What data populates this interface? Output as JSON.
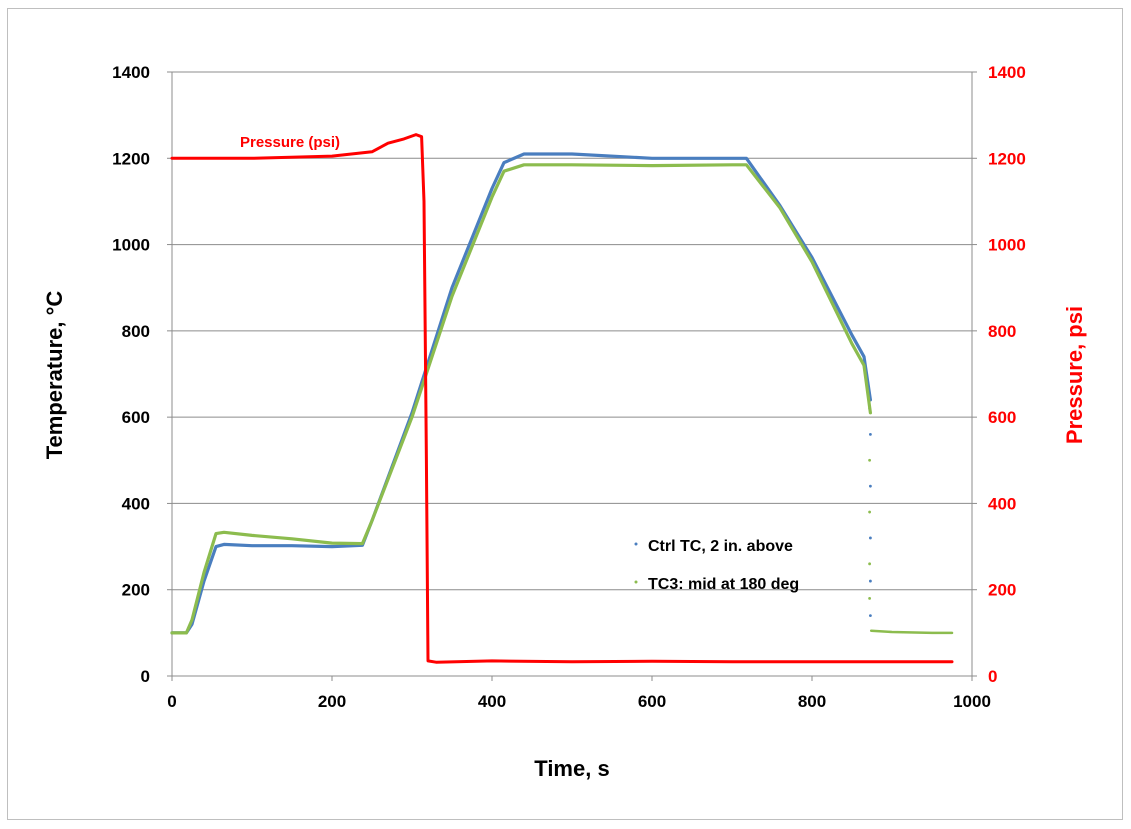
{
  "chart_data": {
    "type": "line",
    "xlabel": "Time, s",
    "ylabel": "Temperature, °C",
    "y2label": "Pressure, psi",
    "xlim": [
      0,
      1000
    ],
    "ylim": [
      0,
      1400
    ],
    "y2lim": [
      0,
      1400
    ],
    "xticks": [
      "0",
      "200",
      "400",
      "600",
      "800",
      "1000"
    ],
    "yticks": [
      "0",
      "200",
      "400",
      "600",
      "800",
      "1000",
      "1200",
      "1400"
    ],
    "y2ticks": [
      "0",
      "200",
      "400",
      "600",
      "800",
      "1000",
      "1200",
      "1400"
    ],
    "grid": "horizontal",
    "legend_position": "lower-right-inside",
    "annotation": "Pressure (psi)",
    "colors": {
      "ctrl": "#4a7ebf",
      "tc3": "#8cbc4e",
      "pressure": "#ff0000",
      "y2axis": "#ff0000"
    },
    "series": [
      {
        "name": "Ctrl TC, 2 in. above",
        "axis": "left",
        "x": [
          0,
          18,
          25,
          40,
          55,
          65,
          100,
          150,
          200,
          238,
          250,
          300,
          350,
          400,
          415,
          440,
          500,
          600,
          700,
          718,
          760,
          800,
          850,
          865,
          873
        ],
        "y": [
          100,
          100,
          120,
          220,
          300,
          305,
          302,
          302,
          300,
          303,
          360,
          610,
          900,
          1130,
          1190,
          1210,
          1210,
          1200,
          1200,
          1200,
          1090,
          970,
          790,
          740,
          640
        ]
      },
      {
        "name": "TC3: mid at 180 deg",
        "axis": "left",
        "x": [
          0,
          18,
          25,
          40,
          55,
          65,
          100,
          150,
          200,
          238,
          250,
          300,
          350,
          400,
          415,
          440,
          500,
          600,
          700,
          718,
          760,
          800,
          850,
          865,
          873
        ],
        "y": [
          100,
          100,
          130,
          240,
          330,
          333,
          326,
          318,
          308,
          307,
          360,
          600,
          880,
          1110,
          1170,
          1185,
          1185,
          1183,
          1185,
          1185,
          1085,
          960,
          770,
          720,
          610
        ]
      },
      {
        "name": "",
        "axis": "left",
        "x": [
          874,
          900,
          950,
          975
        ],
        "y": [
          105,
          102,
          100,
          100
        ]
      },
      {
        "name": "Pressure (psi)",
        "axis": "right",
        "x": [
          0,
          100,
          200,
          250,
          270,
          290,
          305,
          312,
          315,
          318,
          320,
          330,
          400,
          500,
          600,
          700,
          800,
          900,
          975
        ],
        "y": [
          1200,
          1200,
          1205,
          1215,
          1235,
          1245,
          1255,
          1250,
          1100,
          500,
          35,
          32,
          35,
          33,
          34,
          33,
          33,
          33,
          33
        ]
      }
    ]
  }
}
